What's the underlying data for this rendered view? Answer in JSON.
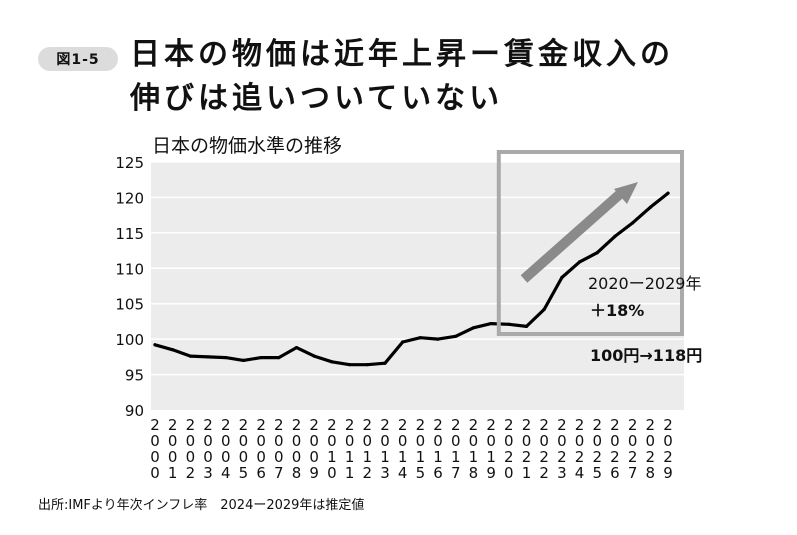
{
  "figure_label": "図1-5",
  "title_line1": "日本の物価は近年上昇ー賃金収入の",
  "title_line2": "伸びは追いついていない",
  "source_note": "出所:IMFより年次インフレ率　2024ー2029年は推定値",
  "chart_data": {
    "type": "line",
    "title": "日本の物価水準の推移",
    "xlabel": "",
    "ylabel": "",
    "ylim": [
      90,
      125
    ],
    "yticks": [
      90,
      95,
      100,
      105,
      110,
      115,
      120,
      125
    ],
    "grid": "horizontal",
    "legend": "none",
    "line_color": "#000000",
    "background_color": "#ececec",
    "highlight_color": "#aaaaaa",
    "x": [
      2000,
      2001,
      2002,
      2003,
      2004,
      2005,
      2006,
      2007,
      2008,
      2009,
      2010,
      2011,
      2012,
      2013,
      2014,
      2015,
      2016,
      2017,
      2018,
      2019,
      2020,
      2021,
      2022,
      2023,
      2024,
      2025,
      2026,
      2027,
      2028,
      2029
    ],
    "x_tick_labels": [
      "2000",
      "2001",
      "2002",
      "2003",
      "2004",
      "2005",
      "2006",
      "2007",
      "2008",
      "2009",
      "2010",
      "2011",
      "2012",
      "2013",
      "2014",
      "2015",
      "2016",
      "2017",
      "2018",
      "2019",
      "2020",
      "2021",
      "2022",
      "2023",
      "2024",
      "2025",
      "2026",
      "2027",
      "2028",
      "2029"
    ],
    "series": [
      {
        "values": [
          99.2,
          98.5,
          97.6,
          97.5,
          97.4,
          97.0,
          97.4,
          97.4,
          98.8,
          97.6,
          96.8,
          96.4,
          96.4,
          96.6,
          99.6,
          100.2,
          100.0,
          100.4,
          101.6,
          102.2,
          102.1,
          101.8,
          104.2,
          108.7,
          110.9,
          112.2,
          114.5,
          116.4,
          118.6,
          120.6
        ]
      }
    ],
    "highlight": {
      "from": 2020,
      "to": 2029
    },
    "annotations": {
      "period": "2020ー2029年",
      "change": "＋18%",
      "price": "100円→118円"
    }
  }
}
